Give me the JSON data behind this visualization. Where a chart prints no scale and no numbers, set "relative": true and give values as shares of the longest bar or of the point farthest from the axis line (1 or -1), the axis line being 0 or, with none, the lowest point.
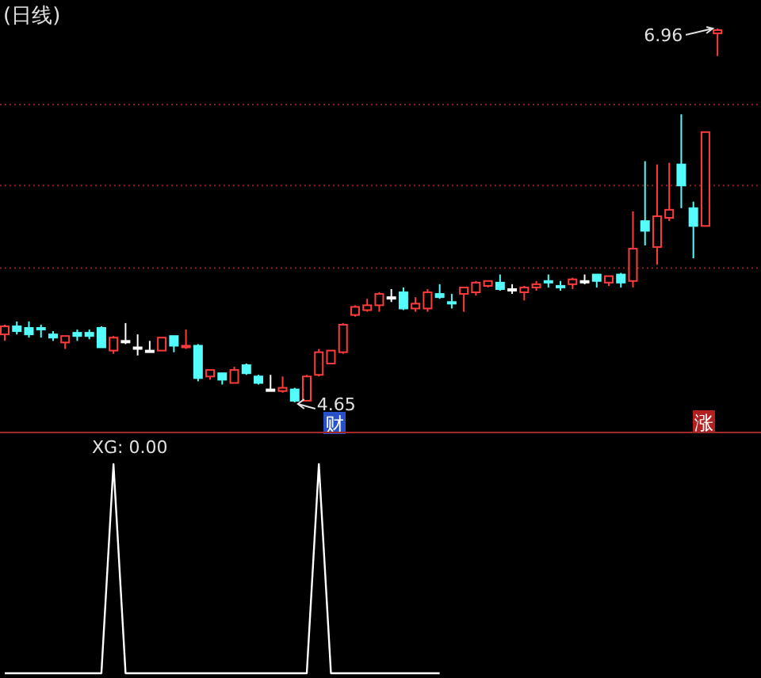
{
  "chart_data": [
    {
      "type": "candlestick",
      "title": "(日线)",
      "grid": "y",
      "yticks": [
        {
          "value": 5.48,
          "label": null
        },
        {
          "value": 5.99,
          "label": null
        },
        {
          "value": 6.49,
          "label": null
        }
      ],
      "categories": [
        null,
        null,
        null,
        null,
        null,
        null,
        null,
        null,
        null,
        null,
        null,
        null,
        null,
        null,
        null,
        null,
        null,
        null,
        null,
        null,
        null,
        null,
        null,
        null,
        null,
        null,
        null,
        null,
        null,
        null,
        null,
        null,
        null,
        null,
        null,
        null,
        null,
        null,
        null,
        null,
        null,
        null,
        null,
        null,
        null,
        null,
        null,
        null,
        null,
        null,
        null,
        null,
        null,
        null,
        null,
        null,
        null,
        null,
        null,
        null
      ],
      "ohlc": [
        [
          5.07,
          5.13,
          5.03,
          5.12
        ],
        [
          5.12,
          5.15,
          5.07,
          5.09
        ],
        [
          5.11,
          5.15,
          5.05,
          5.07
        ],
        [
          5.11,
          5.13,
          5.05,
          5.1
        ],
        [
          5.07,
          5.09,
          5.03,
          5.05
        ],
        [
          5.02,
          5.06,
          4.98,
          5.06
        ],
        [
          5.08,
          5.1,
          5.03,
          5.06
        ],
        [
          5.08,
          5.1,
          5.04,
          5.06
        ],
        [
          5.11,
          5.12,
          4.99,
          4.99
        ],
        [
          4.97,
          5.06,
          4.95,
          5.05
        ],
        [
          5.03,
          5.14,
          5.01,
          5.03
        ],
        [
          4.99,
          5.07,
          4.94,
          4.99
        ],
        [
          4.97,
          5.03,
          4.96,
          4.97
        ],
        [
          4.97,
          5.05,
          4.97,
          5.05
        ],
        [
          5.06,
          5.06,
          4.96,
          5.0
        ],
        [
          4.99,
          5.1,
          4.98,
          5.0
        ],
        [
          5.0,
          5.01,
          4.78,
          4.8
        ],
        [
          4.81,
          4.85,
          4.79,
          4.85
        ],
        [
          4.83,
          4.83,
          4.76,
          4.79
        ],
        [
          4.77,
          4.87,
          4.77,
          4.85
        ],
        [
          4.88,
          4.89,
          4.82,
          4.83
        ],
        [
          4.81,
          4.82,
          4.76,
          4.77
        ],
        [
          4.73,
          4.82,
          4.73,
          4.73
        ],
        [
          4.72,
          4.81,
          4.71,
          4.74
        ],
        [
          4.73,
          4.74,
          4.65,
          4.66
        ],
        [
          4.66,
          4.82,
          4.66,
          4.81
        ],
        [
          4.82,
          4.98,
          4.81,
          4.96
        ],
        [
          4.89,
          4.97,
          4.89,
          4.97
        ],
        [
          4.96,
          5.14,
          4.95,
          5.13
        ],
        [
          5.19,
          5.25,
          5.18,
          5.24
        ],
        [
          5.22,
          5.29,
          5.21,
          5.25
        ],
        [
          5.25,
          5.33,
          5.21,
          5.32
        ],
        [
          5.3,
          5.35,
          5.27,
          5.3
        ],
        [
          5.33,
          5.36,
          5.22,
          5.23
        ],
        [
          5.23,
          5.3,
          5.21,
          5.26
        ],
        [
          5.23,
          5.35,
          5.21,
          5.33
        ],
        [
          5.32,
          5.38,
          5.29,
          5.3
        ],
        [
          5.27,
          5.32,
          5.23,
          5.26
        ],
        [
          5.32,
          5.36,
          5.21,
          5.36
        ],
        [
          5.33,
          5.4,
          5.31,
          5.39
        ],
        [
          5.37,
          5.4,
          5.36,
          5.4
        ],
        [
          5.39,
          5.44,
          5.34,
          5.35
        ],
        [
          5.35,
          5.38,
          5.32,
          5.35
        ],
        [
          5.33,
          5.37,
          5.28,
          5.36
        ],
        [
          5.36,
          5.4,
          5.34,
          5.38
        ],
        [
          5.4,
          5.44,
          5.36,
          5.39
        ],
        [
          5.37,
          5.4,
          5.34,
          5.36
        ],
        [
          5.38,
          5.42,
          5.35,
          5.41
        ],
        [
          5.4,
          5.44,
          5.38,
          5.4
        ],
        [
          5.44,
          5.44,
          5.36,
          5.4
        ],
        [
          5.39,
          5.43,
          5.37,
          5.43
        ],
        [
          5.44,
          5.45,
          5.36,
          5.39
        ],
        [
          5.4,
          5.83,
          5.36,
          5.6
        ],
        [
          5.77,
          6.14,
          5.62,
          5.71
        ],
        [
          5.61,
          6.12,
          5.5,
          5.8
        ],
        [
          5.79,
          6.13,
          5.77,
          5.84
        ],
        [
          6.12,
          6.43,
          5.85,
          5.99
        ],
        [
          5.85,
          5.89,
          5.54,
          5.74
        ],
        [
          5.74,
          6.32,
          5.74,
          6.32
        ],
        [
          6.93,
          6.96,
          6.79,
          6.95
        ]
      ],
      "annotations": [
        "6.96",
        "4.65",
        "财",
        "涨"
      ]
    },
    {
      "type": "line",
      "title": "XG: 0.00",
      "relative": true,
      "color": "#ffffff",
      "categories": [
        null,
        null,
        null,
        null,
        null,
        null,
        null,
        null,
        null,
        null,
        null,
        null,
        null,
        null,
        null,
        null,
        null,
        null,
        null,
        null,
        null,
        null,
        null,
        null,
        null,
        null,
        null,
        null,
        null,
        null,
        null,
        null,
        null,
        null,
        null,
        null,
        null,
        null,
        null,
        null,
        null,
        null,
        null,
        null,
        null,
        null,
        null,
        null,
        null,
        null,
        null,
        null,
        null,
        null,
        null,
        null,
        null,
        null,
        null,
        null
      ],
      "values": [
        0,
        0,
        0,
        0,
        0,
        0,
        0,
        0,
        0,
        1,
        0,
        0,
        0,
        0,
        0,
        0,
        0,
        0,
        0,
        0,
        0,
        0,
        0,
        0,
        0,
        0,
        1,
        0,
        0,
        0,
        0,
        0,
        0,
        0,
        0,
        0,
        0,
        null,
        null,
        null,
        null,
        null,
        null,
        null,
        null,
        null,
        null,
        null,
        null,
        null,
        null,
        null,
        null,
        null,
        null,
        null,
        null,
        null,
        null,
        null
      ]
    }
  ]
}
